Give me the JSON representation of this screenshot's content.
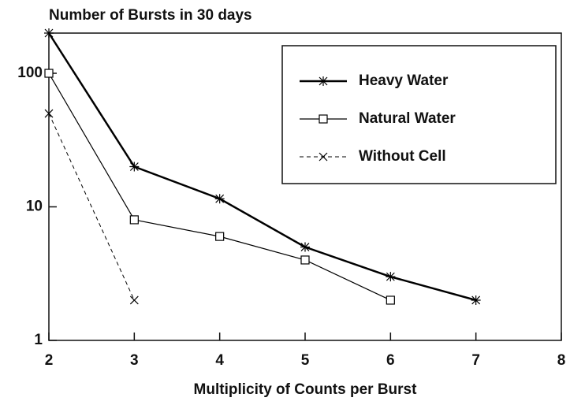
{
  "chart_data": {
    "type": "line",
    "title": "Number of Bursts in 30 days",
    "x_label": "Multiplicity of Counts per Burst",
    "x": [
      2,
      3,
      4,
      5,
      6,
      7
    ],
    "series": [
      {
        "name": "Heavy Water",
        "color": "#000000",
        "marker": "asterisk",
        "dash": "solid",
        "width": 2.5,
        "values": [
          200,
          20,
          11.5,
          5,
          3,
          2
        ]
      },
      {
        "name": "Natural Water",
        "color": "#000000",
        "marker": "square",
        "dash": "solid",
        "width": 1.2,
        "values": [
          100,
          8,
          6,
          4,
          2,
          null
        ]
      },
      {
        "name": "Without Cell",
        "color": "#000000",
        "marker": "x",
        "dash": "dashed",
        "width": 1,
        "values": [
          50,
          2,
          null,
          null,
          null,
          null
        ]
      }
    ],
    "xlim": [
      2,
      8
    ],
    "xticks": [
      2,
      3,
      4,
      5,
      6,
      7,
      8
    ],
    "ylim": [
      1,
      200
    ],
    "yticks": [
      1,
      10,
      100
    ],
    "log_y": true,
    "grid": false,
    "legend": "upper right"
  }
}
